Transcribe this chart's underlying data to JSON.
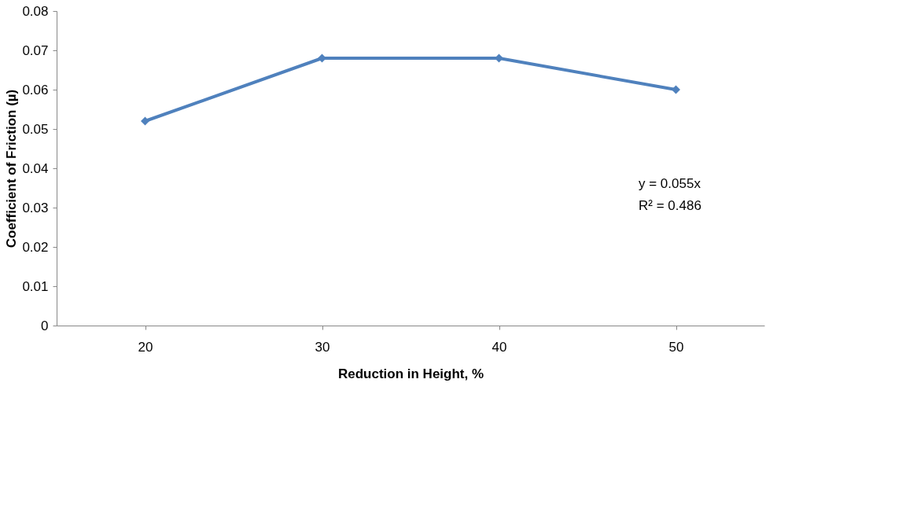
{
  "chart_data": {
    "type": "line",
    "xlabel": "Reduction in Height, %",
    "ylabel": "Coefficient of Friction (µ)",
    "categories": [
      "20",
      "30",
      "40",
      "50"
    ],
    "series": [
      {
        "color": "#4f81bd",
        "values": [
          0.052,
          0.068,
          0.068,
          0.06
        ]
      }
    ],
    "ylim": [
      0,
      0.08
    ],
    "yticks": [
      0,
      0.01,
      0.02,
      0.03,
      0.04,
      0.05,
      0.06,
      0.07,
      0.08
    ],
    "grid": false,
    "marker": "diamond",
    "line_style": "solid",
    "annotations": [
      "y = 0.055x",
      "R² = 0.486"
    ]
  }
}
